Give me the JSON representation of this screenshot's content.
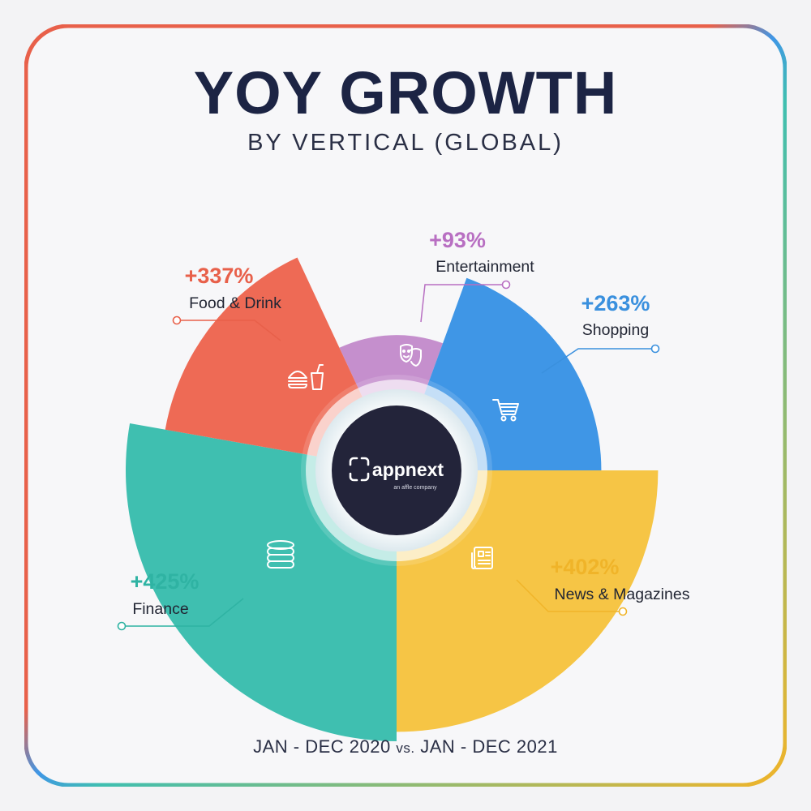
{
  "title": "YOY GROWTH",
  "subtitle": "BY VERTICAL (GLOBAL)",
  "footer": {
    "period_a": "JAN - DEC 2020",
    "vs": "vs.",
    "period_b": "JAN - DEC 2021"
  },
  "brand": {
    "name": "appnext",
    "tagline": "an affle company"
  },
  "chart_data": {
    "type": "pie",
    "variant": "variable-radius donut (radius scaled by growth)",
    "unit": "%",
    "categories": [
      "Entertainment",
      "Shopping",
      "News & Magazines",
      "Finance",
      "Food & Drink"
    ],
    "values": [
      93,
      263,
      402,
      425,
      337
    ],
    "value_labels": [
      "+93%",
      "+263%",
      "+402%",
      "+425%",
      "+337%"
    ],
    "colors": [
      "#c58fcd",
      "#3f96e6",
      "#f6c545",
      "#3fbfb0",
      "#ee6a55"
    ],
    "label_colors": [
      "#b86fc2",
      "#3a90de",
      "#f0b429",
      "#2fb3a3",
      "#e8604a"
    ],
    "icons": [
      "theater-masks-icon",
      "shopping-cart-icon",
      "newspaper-icon",
      "coins-icon",
      "burger-drink-icon"
    ]
  }
}
